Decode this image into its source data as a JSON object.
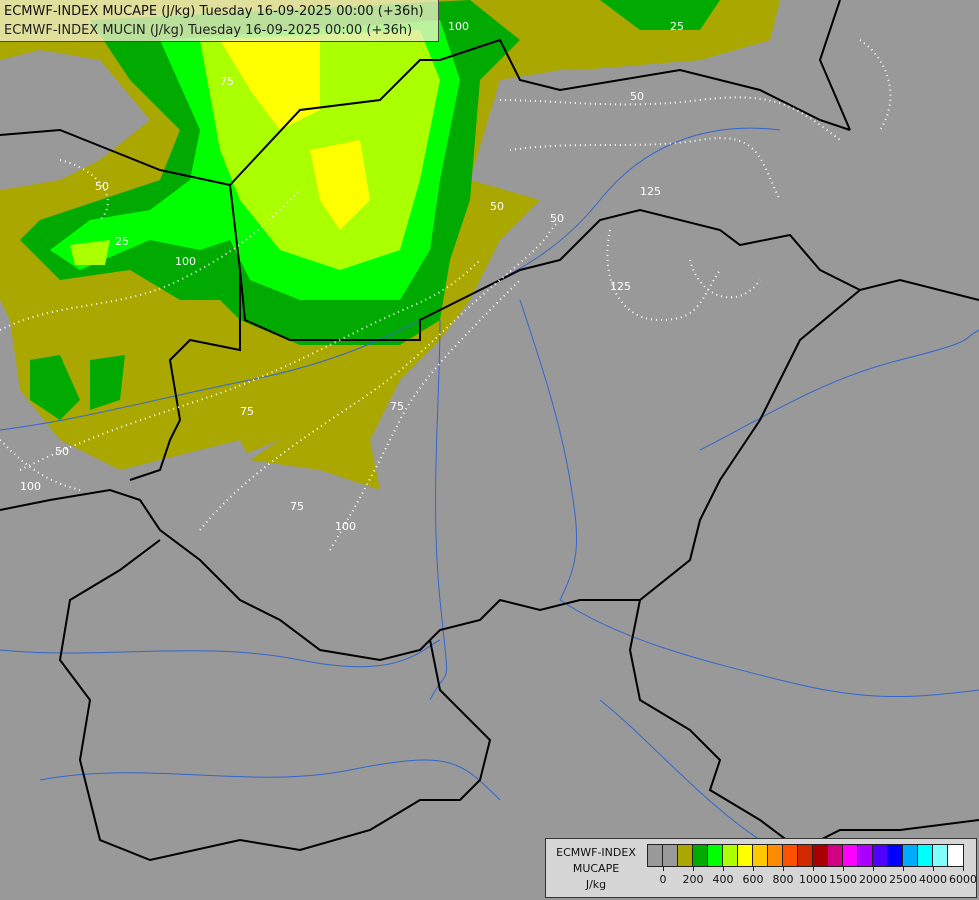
{
  "header": {
    "line1": "ECMWF-INDEX MUCAPE (J/kg) Tuesday 16-09-2025 00:00 (+36h)",
    "line2": "ECMWF-INDEX MUCIN (J/kg) Tuesday 16-09-2025 00:00 (+36h)"
  },
  "legend": {
    "title_lines": [
      "ECMWF-INDEX",
      "MUCAPE",
      "J/kg"
    ],
    "colors": [
      "#999999",
      "#9a9a9a",
      "#aaa800",
      "#00aa00",
      "#00ff00",
      "#aaff00",
      "#ffff00",
      "#ffc800",
      "#ff8c00",
      "#ff5000",
      "#d22800",
      "#aa0000",
      "#d20082",
      "#ff00ff",
      "#aa00ff",
      "#5000ff",
      "#0000ff",
      "#00aaff",
      "#00ffff",
      "#80ffff",
      "#ffffff"
    ],
    "labels": [
      "0",
      "200",
      "400",
      "600",
      "800",
      "1000",
      "1500",
      "2000",
      "2500",
      "4000",
      "6000"
    ]
  },
  "map": {
    "background_color": "#999999",
    "border_color": "#000000",
    "river_color": "#3366cc",
    "contour_color": "#ffffff",
    "contour_labels": [
      "100",
      "75",
      "50",
      "25",
      "50",
      "100",
      "75",
      "50",
      "125",
      "50",
      "25",
      "100",
      "75",
      "50",
      "100",
      "75",
      "125"
    ]
  }
}
